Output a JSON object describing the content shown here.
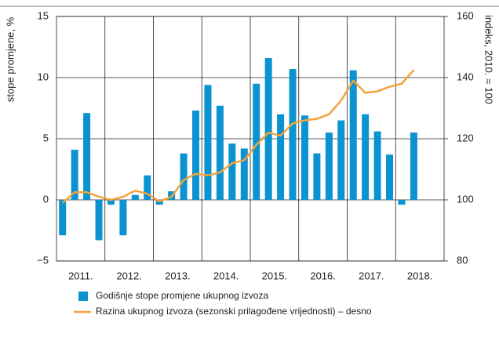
{
  "chart_data": {
    "type": "bar",
    "ylabel": "stope promjene, %",
    "y2label": "indeks, 2010. = 100",
    "categories": [
      null,
      null,
      null,
      null,
      null,
      null,
      null,
      null,
      null,
      null,
      null,
      null,
      null,
      null,
      null,
      null,
      null,
      null,
      null,
      null,
      null,
      null,
      null,
      null,
      null,
      null,
      null,
      null,
      null,
      null
    ],
    "x_groups": [
      "2011.",
      "2012.",
      "2013.",
      "2014.",
      "2015.",
      "2016.",
      "2017.",
      "2018."
    ],
    "group_size": 4,
    "ylim": [
      -5,
      15
    ],
    "yticks": [
      {
        "value": -5,
        "label": "−5"
      },
      0,
      5,
      10,
      15
    ],
    "y2lim": [
      80,
      160
    ],
    "y2ticks": [
      80,
      100,
      120,
      140,
      160
    ],
    "grid": true,
    "series": [
      {
        "name": "Godišnje stope promjene ukupnog izvoza",
        "type": "bar",
        "color": "#0a93d1",
        "values": [
          -2.9,
          4.1,
          7.1,
          -3.3,
          -0.4,
          -2.9,
          0.4,
          2.0,
          -0.4,
          0.7,
          3.8,
          7.3,
          9.4,
          7.7,
          4.6,
          4.2,
          9.5,
          11.6,
          7.0,
          10.7,
          6.9,
          3.8,
          5.5,
          6.5,
          10.6,
          7.0,
          5.6,
          3.7,
          -0.4,
          5.5
        ]
      },
      {
        "name": "Razina ukupnog izvoza (sezonski prilagođene vrijednosti) – desno",
        "type": "line",
        "axis": "y2",
        "color": "#f4a43a",
        "values": [
          99,
          102.5,
          102.5,
          101,
          100,
          101,
          103,
          102,
          99.5,
          101,
          106.5,
          108.5,
          108,
          109,
          112,
          113,
          118,
          122,
          121,
          125,
          126,
          126.5,
          128,
          132.5,
          139,
          135,
          135.5,
          137,
          138,
          142.5
        ]
      }
    ]
  }
}
